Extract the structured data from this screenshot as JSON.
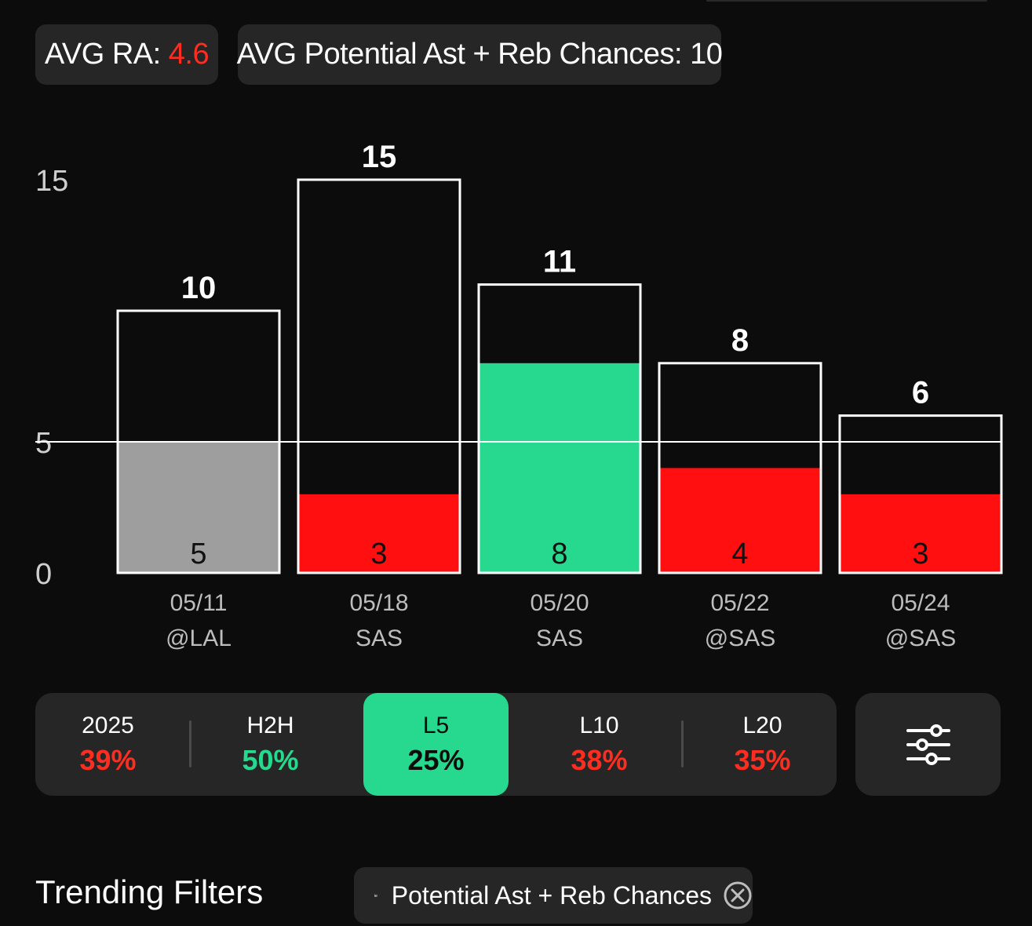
{
  "header": {
    "avg_ra_label": "AVG RA:",
    "avg_ra_value": "4.6",
    "avg_chances_label": "AVG Potential Ast + Reb Chances:",
    "avg_chances_value": "10"
  },
  "chart_data": {
    "type": "bar",
    "categories": [
      "05/11",
      "05/18",
      "05/20",
      "05/22",
      "05/24"
    ],
    "opponents": [
      "@LAL",
      "SAS",
      "SAS",
      "@SAS",
      "@SAS"
    ],
    "series": [
      {
        "values": [
          10,
          15,
          11,
          8,
          6
        ]
      },
      {
        "values": [
          5,
          3,
          8,
          4,
          3
        ]
      }
    ],
    "bar_colors": [
      "#9e9e9e",
      "#ff0f0f",
      "#27d98e",
      "#ff0f0f",
      "#ff0f0f"
    ],
    "inner_label_colors": [
      "#111111",
      "#111111",
      "#111111",
      "#111111",
      "#111111"
    ],
    "y_ticks": [
      0,
      5,
      15
    ],
    "ylim": [
      0,
      15
    ],
    "line_value": 5,
    "xlabel": "",
    "ylabel": ""
  },
  "tabs": [
    {
      "name": "2025",
      "value": "39%",
      "color": "#ff2d20",
      "active": false
    },
    {
      "name": "H2H",
      "value": "50%",
      "color": "#27d98e",
      "active": false
    },
    {
      "name": "L5",
      "value": "25%",
      "color": "#0c0c0c",
      "active": true
    },
    {
      "name": "L10",
      "value": "38%",
      "color": "#ff2d20",
      "active": false
    },
    {
      "name": "L20",
      "value": "35%",
      "color": "#ff2d20",
      "active": false
    }
  ],
  "filter_button_icon": "sliders-icon",
  "trending": {
    "title": "Trending Filters",
    "chip_icon": "bar-chart-icon",
    "chip_label": "Potential Ast + Reb Chances",
    "chip_close_icon": "close-circle-icon"
  }
}
